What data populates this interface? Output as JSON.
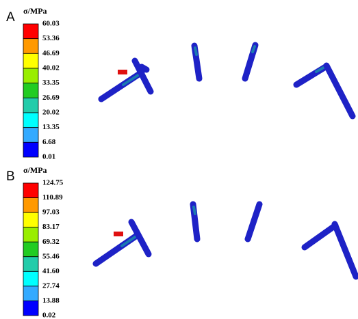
{
  "panels": [
    {
      "label": "A",
      "unit": "σ/MPa",
      "levels": [
        "60.03",
        "53.36",
        "46.69",
        "40.02",
        "33.35",
        "26.69",
        "20.02",
        "13.35",
        "6.68",
        "0.01"
      ]
    },
    {
      "label": "B",
      "unit": "σ/MPa",
      "levels": [
        "124.75",
        "110.89",
        "97.03",
        "83.17",
        "69.32",
        "55.46",
        "41.60",
        "27.74",
        "13.88",
        "0.02"
      ]
    }
  ]
}
